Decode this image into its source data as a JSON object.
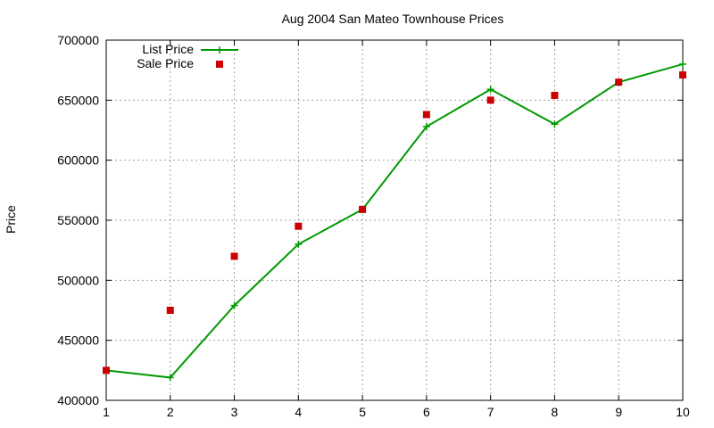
{
  "chart_data": {
    "type": "line",
    "title": "Aug 2004 San Mateo Townhouse Prices",
    "xlabel": "",
    "ylabel": "Price",
    "xlim": [
      1,
      10
    ],
    "ylim": [
      400000,
      700000
    ],
    "x_ticks": [
      1,
      2,
      3,
      4,
      5,
      6,
      7,
      8,
      9,
      10
    ],
    "y_ticks": [
      400000,
      450000,
      500000,
      550000,
      600000,
      650000,
      700000
    ],
    "grid": true,
    "legend_position": "top-left",
    "series": [
      {
        "name": "List Price",
        "style": "line-with-plus",
        "color": "#009900",
        "x": [
          1,
          2,
          3,
          4,
          5,
          6,
          7,
          8,
          9,
          10
        ],
        "values": [
          425000,
          419000,
          479000,
          530000,
          559000,
          628000,
          659000,
          630000,
          665000,
          680000
        ]
      },
      {
        "name": "Sale Price",
        "style": "square-points",
        "color": "#cc0000",
        "x": [
          1,
          2,
          3,
          4,
          5,
          6,
          7,
          8,
          9,
          10
        ],
        "values": [
          425000,
          475000,
          520000,
          545000,
          559000,
          638000,
          650000,
          654000,
          665000,
          671000
        ]
      }
    ]
  }
}
